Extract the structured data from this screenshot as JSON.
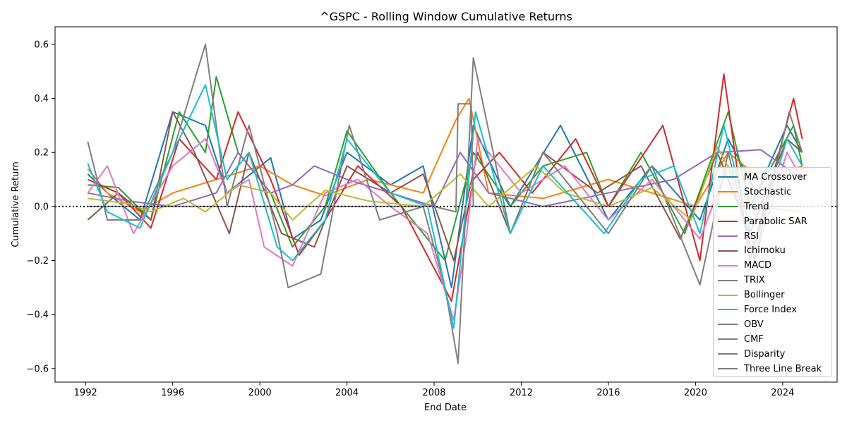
{
  "chart_data": {
    "type": "line",
    "title": "^GSPC - Rolling Window Cumulative Returns",
    "xlabel": "End Date",
    "ylabel": "Cumulative Return",
    "xlim": [
      1990.6,
      2026.5
    ],
    "ylim": [
      -0.65,
      0.665
    ],
    "x_ticks": [
      "1992",
      "1996",
      "2000",
      "2004",
      "2008",
      "2012",
      "2016",
      "2020",
      "2024"
    ],
    "y_ticks": [
      "0.6",
      "0.4",
      "0.2",
      "0.0",
      "−0.2",
      "−0.4",
      "−0.6"
    ],
    "reference_line": {
      "y": 0.0,
      "style": "dotted",
      "color": "#000000"
    },
    "legend_position": "center-right",
    "grid": false,
    "series": [
      {
        "name": "MA Crossover",
        "color": "#1f77b4",
        "points": [
          [
            1992.1,
            0.12
          ],
          [
            1993,
            0.05
          ],
          [
            1994.5,
            -0.05
          ],
          [
            1996,
            0.35
          ],
          [
            1997.5,
            0.3
          ],
          [
            1998.5,
            0.05
          ],
          [
            2000.5,
            0.18
          ],
          [
            2001.5,
            -0.12
          ],
          [
            2002.8,
            -0.05
          ],
          [
            2004,
            0.2
          ],
          [
            2006,
            0.08
          ],
          [
            2007.5,
            0.15
          ],
          [
            2008.8,
            -0.3
          ],
          [
            2009.8,
            0.3
          ],
          [
            2011.5,
            0.0
          ],
          [
            2013.8,
            0.3
          ],
          [
            2016,
            -0.05
          ],
          [
            2018,
            0.15
          ],
          [
            2020.2,
            -0.05
          ],
          [
            2021.5,
            0.25
          ],
          [
            2022.8,
            0.05
          ],
          [
            2024.2,
            0.3
          ],
          [
            2024.9,
            0.2
          ]
        ]
      },
      {
        "name": "Stochastic",
        "color": "#ff7f0e",
        "points": [
          [
            1992.1,
            0.14
          ],
          [
            1993,
            0.05
          ],
          [
            1994.5,
            -0.02
          ],
          [
            1996,
            0.05
          ],
          [
            1998,
            0.1
          ],
          [
            2000,
            0.15
          ],
          [
            2001.5,
            0.08
          ],
          [
            2003,
            0.04
          ],
          [
            2005,
            0.1
          ],
          [
            2007.5,
            0.05
          ],
          [
            2009,
            0.32
          ],
          [
            2009.6,
            0.4
          ],
          [
            2010.5,
            0.05
          ],
          [
            2013,
            0.03
          ],
          [
            2016,
            0.1
          ],
          [
            2018,
            0.05
          ],
          [
            2020,
            0.0
          ],
          [
            2021.5,
            0.2
          ],
          [
            2023,
            0.1
          ],
          [
            2024.9,
            0.15
          ]
        ]
      },
      {
        "name": "Trend",
        "color": "#2ca02c",
        "points": [
          [
            1992.1,
            0.08
          ],
          [
            1993.5,
            0.07
          ],
          [
            1995,
            -0.05
          ],
          [
            1996.3,
            0.35
          ],
          [
            1997.5,
            0.2
          ],
          [
            1998,
            0.48
          ],
          [
            1999,
            0.2
          ],
          [
            2000.5,
            0.05
          ],
          [
            2001.5,
            -0.15
          ],
          [
            2003,
            0.0
          ],
          [
            2004,
            0.28
          ],
          [
            2006,
            0.05
          ],
          [
            2008.5,
            -0.2
          ],
          [
            2009.8,
            0.2
          ],
          [
            2011.5,
            0.0
          ],
          [
            2013,
            0.15
          ],
          [
            2015,
            0.2
          ],
          [
            2016,
            0.0
          ],
          [
            2017.5,
            0.2
          ],
          [
            2019.5,
            -0.1
          ],
          [
            2021.5,
            0.35
          ],
          [
            2022.5,
            0.0
          ],
          [
            2024.5,
            0.3
          ],
          [
            2024.9,
            0.15
          ]
        ]
      },
      {
        "name": "Parabolic SAR",
        "color": "#d62728",
        "points": [
          [
            1992.1,
            0.1
          ],
          [
            1993.5,
            0.05
          ],
          [
            1995,
            -0.08
          ],
          [
            1996.3,
            0.25
          ],
          [
            1998,
            0.1
          ],
          [
            1999,
            0.35
          ],
          [
            2000.5,
            0.1
          ],
          [
            2001.8,
            -0.18
          ],
          [
            2003,
            -0.05
          ],
          [
            2004.5,
            0.15
          ],
          [
            2006.5,
            0.0
          ],
          [
            2008.8,
            -0.35
          ],
          [
            2009.8,
            0.1
          ],
          [
            2011,
            0.2
          ],
          [
            2012.5,
            0.05
          ],
          [
            2014.5,
            0.25
          ],
          [
            2016,
            0.0
          ],
          [
            2018.5,
            0.3
          ],
          [
            2020.2,
            -0.2
          ],
          [
            2021.3,
            0.49
          ],
          [
            2022.5,
            -0.2
          ],
          [
            2024.5,
            0.4
          ],
          [
            2024.9,
            0.25
          ]
        ]
      },
      {
        "name": "RSI",
        "color": "#9467bd",
        "points": [
          [
            1992.1,
            0.05
          ],
          [
            1994,
            0.02
          ],
          [
            1996,
            0.0
          ],
          [
            1998,
            0.05
          ],
          [
            1999,
            0.2
          ],
          [
            2000.5,
            0.05
          ],
          [
            2001.5,
            0.08
          ],
          [
            2002.5,
            0.15
          ],
          [
            2004,
            0.1
          ],
          [
            2006,
            0.05
          ],
          [
            2008,
            0.0
          ],
          [
            2009.2,
            0.2
          ],
          [
            2010.5,
            0.05
          ],
          [
            2013,
            0.0
          ],
          [
            2016,
            0.05
          ],
          [
            2019,
            0.1
          ],
          [
            2021,
            0.2
          ],
          [
            2023,
            0.21
          ],
          [
            2024.9,
            0.1
          ]
        ]
      },
      {
        "name": "Ichimoku",
        "color": "#8c564b",
        "points": [
          [
            1992.1,
            -0.05
          ],
          [
            1993.5,
            0.05
          ],
          [
            1995,
            -0.05
          ],
          [
            1996,
            0.35
          ],
          [
            1997,
            0.2
          ],
          [
            1998.6,
            -0.1
          ],
          [
            1999.5,
            0.2
          ],
          [
            2001,
            -0.1
          ],
          [
            2002.5,
            -0.15
          ],
          [
            2004,
            0.15
          ],
          [
            2006,
            0.05
          ],
          [
            2007.5,
            0.12
          ],
          [
            2008.9,
            -0.2
          ],
          [
            2010,
            0.2
          ],
          [
            2011.5,
            -0.1
          ],
          [
            2013,
            0.2
          ],
          [
            2015.5,
            0.05
          ],
          [
            2017.5,
            0.15
          ],
          [
            2019.3,
            -0.12
          ],
          [
            2021,
            0.2
          ],
          [
            2022.5,
            -0.1
          ],
          [
            2024.2,
            0.25
          ],
          [
            2024.9,
            0.2
          ]
        ]
      },
      {
        "name": "MACD",
        "color": "#e377c2",
        "points": [
          [
            1992.1,
            0.05
          ],
          [
            1993,
            0.15
          ],
          [
            1994.2,
            -0.1
          ],
          [
            1996,
            0.15
          ],
          [
            1997.5,
            0.25
          ],
          [
            1998.5,
            0.05
          ],
          [
            1999.5,
            0.1
          ],
          [
            2000.2,
            -0.15
          ],
          [
            2001.5,
            -0.22
          ],
          [
            2003,
            0.05
          ],
          [
            2004.5,
            0.1
          ],
          [
            2006,
            0.0
          ],
          [
            2007.7,
            -0.1
          ],
          [
            2008.9,
            -0.42
          ],
          [
            2009.5,
            -0.1
          ],
          [
            2010,
            0.25
          ],
          [
            2012,
            0.05
          ],
          [
            2014,
            0.15
          ],
          [
            2016,
            -0.05
          ],
          [
            2018,
            0.1
          ],
          [
            2020.2,
            -0.12
          ],
          [
            2021.5,
            0.15
          ],
          [
            2022.7,
            -0.2
          ],
          [
            2024.2,
            0.2
          ],
          [
            2024.9,
            0.1
          ]
        ]
      },
      {
        "name": "TRIX",
        "color": "#7f7f7f",
        "points": [
          [
            1992.1,
            0.24
          ],
          [
            1993,
            -0.05
          ],
          [
            1994.5,
            -0.05
          ],
          [
            1996,
            0.2
          ],
          [
            1997.5,
            0.6
          ],
          [
            1998.5,
            0.0
          ],
          [
            1999.5,
            0.3
          ],
          [
            2000.8,
            -0.1
          ],
          [
            2001.3,
            -0.3
          ],
          [
            2002.8,
            -0.25
          ],
          [
            2004.1,
            0.3
          ],
          [
            2005.5,
            -0.05
          ],
          [
            2007.5,
            0.0
          ],
          [
            2008.5,
            -0.3
          ],
          [
            2009.1,
            -0.58
          ],
          [
            2009.8,
            0.55
          ],
          [
            2011.5,
            -0.1
          ],
          [
            2013,
            0.2
          ],
          [
            2016,
            -0.1
          ],
          [
            2018,
            0.15
          ],
          [
            2020.2,
            -0.29
          ],
          [
            2021.5,
            0.2
          ],
          [
            2022.7,
            -0.2
          ],
          [
            2024.3,
            0.35
          ],
          [
            2024.9,
            0.2
          ]
        ]
      },
      {
        "name": "Bollinger",
        "color": "#bcbd22",
        "points": [
          [
            1992.1,
            0.03
          ],
          [
            1994,
            0.01
          ],
          [
            1995,
            -0.02
          ],
          [
            1996.5,
            0.03
          ],
          [
            1997.5,
            -0.02
          ],
          [
            1999,
            0.08
          ],
          [
            2000.5,
            0.05
          ],
          [
            2001.5,
            -0.05
          ],
          [
            2003,
            0.06
          ],
          [
            2005,
            0.02
          ],
          [
            2007.5,
            0.0
          ],
          [
            2009.2,
            0.12
          ],
          [
            2010.5,
            0.0
          ],
          [
            2012.7,
            0.15
          ],
          [
            2014,
            0.05
          ],
          [
            2016,
            0.0
          ],
          [
            2018,
            0.07
          ],
          [
            2019.8,
            -0.05
          ],
          [
            2021,
            0.22
          ],
          [
            2022.5,
            0.0
          ],
          [
            2024.9,
            -0.02
          ]
        ]
      },
      {
        "name": "Force Index",
        "color": "#17becf",
        "points": [
          [
            1992.1,
            0.16
          ],
          [
            1993,
            -0.02
          ],
          [
            1994.5,
            -0.08
          ],
          [
            1996,
            0.2
          ],
          [
            1997.5,
            0.45
          ],
          [
            1998.5,
            0.1
          ],
          [
            1999.5,
            0.2
          ],
          [
            2000.8,
            -0.15
          ],
          [
            2001.5,
            -0.2
          ],
          [
            2003,
            -0.05
          ],
          [
            2004,
            0.25
          ],
          [
            2006,
            0.05
          ],
          [
            2007.7,
            0.0
          ],
          [
            2008.9,
            -0.45
          ],
          [
            2009.9,
            0.35
          ],
          [
            2011.5,
            -0.1
          ],
          [
            2013,
            0.15
          ],
          [
            2015.8,
            -0.1
          ],
          [
            2017.5,
            0.1
          ],
          [
            2019,
            0.15
          ],
          [
            2020.2,
            -0.1
          ],
          [
            2021.3,
            0.3
          ],
          [
            2022.7,
            -0.15
          ],
          [
            2024.2,
            0.25
          ],
          [
            2024.9,
            0.15
          ]
        ]
      },
      {
        "name": "OBV",
        "color": "#7f7f7f",
        "points": []
      },
      {
        "name": "CMF",
        "color": "#7f7f7f",
        "points": []
      },
      {
        "name": "Disparity",
        "color": "#7f7f7f",
        "points": []
      },
      {
        "name": "Three Line Break",
        "color": "#7f7f7f",
        "points": [
          [
            1992.1,
            0.0
          ],
          [
            2004,
            0.0
          ],
          [
            2008,
            0.0
          ],
          [
            2009,
            -0.02
          ],
          [
            2009.1,
            0.38
          ],
          [
            2009.7,
            0.38
          ],
          [
            2009.8,
            0.0
          ],
          [
            2024.9,
            0.0
          ]
        ]
      }
    ]
  }
}
